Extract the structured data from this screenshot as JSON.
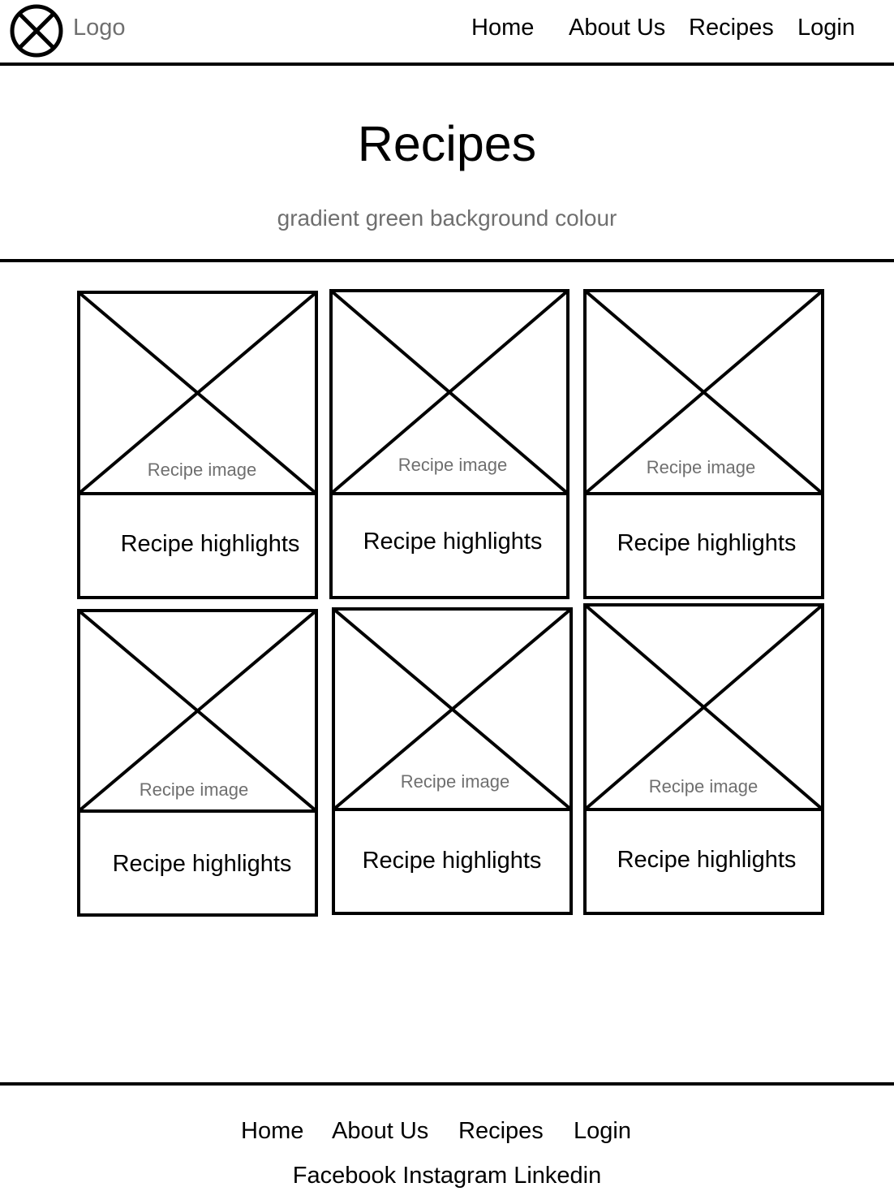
{
  "header": {
    "logo_label": "Logo",
    "nav": [
      "Home",
      "About Us",
      "Recipes",
      "Login"
    ]
  },
  "hero": {
    "title": "Recipes",
    "note": "gradient green background colour"
  },
  "cards": [
    {
      "image_label": "Recipe image",
      "highlights": "Recipe highlights"
    },
    {
      "image_label": "Recipe image",
      "highlights": "Recipe highlights"
    },
    {
      "image_label": "Recipe image",
      "highlights": "Recipe highlights"
    },
    {
      "image_label": "Recipe image",
      "highlights": "Recipe highlights"
    },
    {
      "image_label": "Recipe image",
      "highlights": "Recipe highlights"
    },
    {
      "image_label": "Recipe image",
      "highlights": "Recipe highlights"
    }
  ],
  "footer": {
    "nav": [
      "Home",
      "About Us",
      "Recipes",
      "Login"
    ],
    "social": [
      "Facebook",
      "Instagram",
      "Linkedin"
    ]
  },
  "colors": {
    "line": "#000000",
    "muted_text": "#6f6f6f",
    "background": "#ffffff"
  }
}
